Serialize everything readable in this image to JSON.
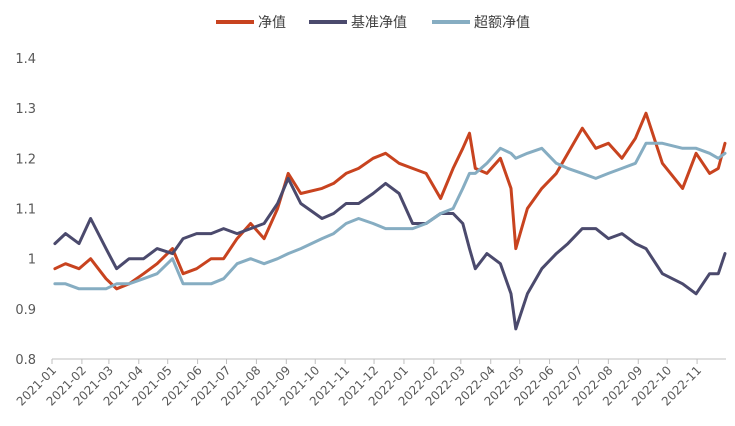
{
  "chart_data": {
    "type": "line",
    "title": "",
    "xlabel": "",
    "ylabel": "",
    "ylim": [
      0.8,
      1.4
    ],
    "yticks": [
      "0.8",
      "0.9",
      "1",
      "1.1",
      "1.2",
      "1.3",
      "1.4"
    ],
    "xticks": [
      "2021-01",
      "2021-02",
      "2021-03",
      "2021-04",
      "2021-05",
      "2021-06",
      "2021-07",
      "2021-08",
      "2021-09",
      "2021-10",
      "2021-11",
      "2021-12",
      "2022-01",
      "2022-02",
      "2022-03",
      "2022-04",
      "2022-05",
      "2022-06",
      "2022-07",
      "2022-08",
      "2022-09",
      "2022-10",
      "2022-11"
    ],
    "grid": false,
    "legend_position": "top-center",
    "x": [
      "2021-01-04",
      "2021-01-15",
      "2021-01-29",
      "2021-02-10",
      "2021-02-26",
      "2021-03-09",
      "2021-03-22",
      "2021-04-06",
      "2021-04-20",
      "2021-05-06",
      "2021-05-17",
      "2021-05-31",
      "2021-06-15",
      "2021-06-28",
      "2021-07-12",
      "2021-07-26",
      "2021-08-09",
      "2021-08-23",
      "2021-09-03",
      "2021-09-16",
      "2021-10-08",
      "2021-10-20",
      "2021-11-02",
      "2021-11-15",
      "2021-11-30",
      "2021-12-13",
      "2021-12-27",
      "2022-01-10",
      "2022-01-24",
      "2022-02-08",
      "2022-02-21",
      "2022-03-03",
      "2022-03-10",
      "2022-03-16",
      "2022-03-28",
      "2022-04-11",
      "2022-04-22",
      "2022-04-27",
      "2022-05-09",
      "2022-05-24",
      "2022-06-08",
      "2022-06-20",
      "2022-07-05",
      "2022-07-19",
      "2022-08-01",
      "2022-08-15",
      "2022-08-29",
      "2022-09-09",
      "2022-09-26",
      "2022-10-17",
      "2022-10-31",
      "2022-11-14",
      "2022-11-23",
      "2022-11-30"
    ],
    "series": [
      {
        "name": "净值",
        "color": "#c8431f",
        "values": [
          0.98,
          0.99,
          0.98,
          1.0,
          0.96,
          0.94,
          0.95,
          0.97,
          0.99,
          1.02,
          0.97,
          0.98,
          1.0,
          1.0,
          1.04,
          1.07,
          1.04,
          1.1,
          1.17,
          1.13,
          1.14,
          1.15,
          1.17,
          1.18,
          1.2,
          1.21,
          1.19,
          1.18,
          1.17,
          1.12,
          1.18,
          1.22,
          1.25,
          1.18,
          1.17,
          1.2,
          1.14,
          1.02,
          1.1,
          1.14,
          1.17,
          1.21,
          1.26,
          1.22,
          1.23,
          1.2,
          1.24,
          1.29,
          1.19,
          1.14,
          1.21,
          1.17,
          1.18,
          1.23
        ]
      },
      {
        "name": "基准净值",
        "color": "#4b4a6d",
        "values": [
          1.03,
          1.05,
          1.03,
          1.08,
          1.02,
          0.98,
          1.0,
          1.0,
          1.02,
          1.01,
          1.04,
          1.05,
          1.05,
          1.06,
          1.05,
          1.06,
          1.07,
          1.11,
          1.16,
          1.11,
          1.08,
          1.09,
          1.11,
          1.11,
          1.13,
          1.15,
          1.13,
          1.07,
          1.07,
          1.09,
          1.09,
          1.07,
          1.02,
          0.98,
          1.01,
          0.99,
          0.93,
          0.86,
          0.93,
          0.98,
          1.01,
          1.03,
          1.06,
          1.06,
          1.04,
          1.05,
          1.03,
          1.02,
          0.97,
          0.95,
          0.93,
          0.97,
          0.97,
          1.01
        ]
      },
      {
        "name": "超额净值",
        "color": "#86adc2",
        "values": [
          0.95,
          0.95,
          0.94,
          0.94,
          0.94,
          0.95,
          0.95,
          0.96,
          0.97,
          1.0,
          0.95,
          0.95,
          0.95,
          0.96,
          0.99,
          1.0,
          0.99,
          1.0,
          1.01,
          1.02,
          1.04,
          1.05,
          1.07,
          1.08,
          1.07,
          1.06,
          1.06,
          1.06,
          1.07,
          1.09,
          1.1,
          1.14,
          1.17,
          1.17,
          1.19,
          1.22,
          1.21,
          1.2,
          1.21,
          1.22,
          1.19,
          1.18,
          1.17,
          1.16,
          1.17,
          1.18,
          1.19,
          1.23,
          1.23,
          1.22,
          1.22,
          1.21,
          1.2,
          1.21
        ]
      }
    ]
  }
}
